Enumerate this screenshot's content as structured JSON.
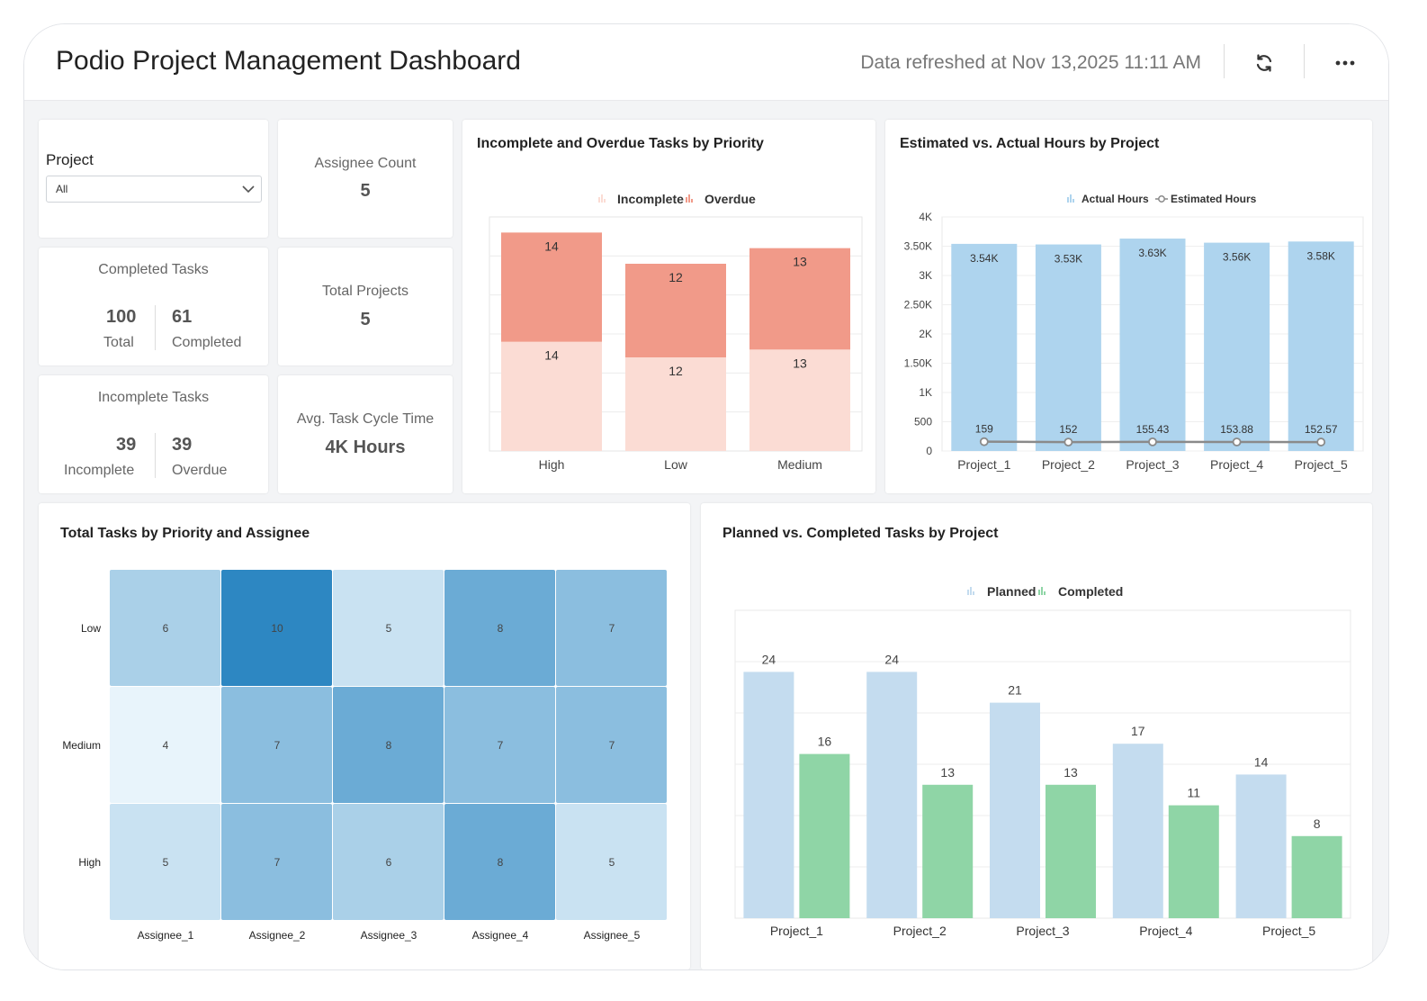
{
  "header": {
    "title": "Podio Project Management Dashboard",
    "refresh_text": "Data refreshed at Nov 13,2025 11:11 AM"
  },
  "filter": {
    "label": "Project",
    "selected": "All"
  },
  "kpis": {
    "assignee": {
      "label": "Assignee Count",
      "value": "5"
    },
    "completed": {
      "label": "Completed Tasks",
      "total": "100",
      "total_label": "Total",
      "done": "61",
      "done_label": "Completed"
    },
    "projects": {
      "label": "Total Projects",
      "value": "5"
    },
    "incomplete": {
      "label": "Incomplete Tasks",
      "incomplete": "39",
      "incomplete_label": "Incomplete",
      "overdue": "39",
      "overdue_label": "Overdue"
    },
    "cycle": {
      "label": "Avg. Task Cycle Time",
      "value": "4K Hours"
    }
  },
  "chart_data": [
    {
      "type": "bar",
      "stacked": true,
      "title": "Incomplete and Overdue Tasks by Priority",
      "categories": [
        "High",
        "Low",
        "Medium"
      ],
      "series": [
        {
          "name": "Incomplete",
          "values": [
            14,
            12,
            13
          ],
          "color": "#fbdcd4"
        },
        {
          "name": "Overdue",
          "values": [
            14,
            12,
            13
          ],
          "color": "#f19a89"
        }
      ],
      "ylim": [
        0,
        30
      ],
      "legend": "top-center",
      "grid": true
    },
    {
      "type": "bar",
      "title": "Estimated vs. Actual Hours by Project",
      "categories": [
        "Project_1",
        "Project_2",
        "Project_3",
        "Project_4",
        "Project_5"
      ],
      "series": [
        {
          "name": "Actual Hours",
          "values": [
            3540,
            3530,
            3630,
            3560,
            3580
          ],
          "labels": [
            "3.54K",
            "3.53K",
            "3.63K",
            "3.56K",
            "3.58K"
          ],
          "color": "#aed4ee"
        },
        {
          "name": "Estimated Hours",
          "type": "line",
          "values": [
            159,
            152,
            155.43,
            153.88,
            152.57
          ],
          "labels": [
            "159",
            "152",
            "155.43",
            "153.88",
            "152.57"
          ],
          "color": "#8a8a8a"
        }
      ],
      "y_ticks": [
        "0",
        "500",
        "1K",
        "1.50K",
        "2K",
        "2.50K",
        "3K",
        "3.50K",
        "4K"
      ],
      "ylim": [
        0,
        4000
      ],
      "legend": "top-center",
      "grid": true
    },
    {
      "type": "heatmap",
      "title": "Total Tasks by Priority and Assignee",
      "x": [
        "Assignee_1",
        "Assignee_2",
        "Assignee_3",
        "Assignee_4",
        "Assignee_5"
      ],
      "y": [
        "Low",
        "Medium",
        "High"
      ],
      "values": [
        [
          6,
          10,
          5,
          8,
          7
        ],
        [
          4,
          7,
          8,
          7,
          7
        ],
        [
          5,
          7,
          6,
          8,
          5
        ]
      ]
    },
    {
      "type": "bar",
      "title": "Planned vs. Completed Tasks by Project",
      "categories": [
        "Project_1",
        "Project_2",
        "Project_3",
        "Project_4",
        "Project_5"
      ],
      "series": [
        {
          "name": "Planned",
          "values": [
            24,
            24,
            21,
            17,
            14
          ],
          "color": "#c4dcef"
        },
        {
          "name": "Completed",
          "values": [
            16,
            13,
            13,
            11,
            8
          ],
          "color": "#8fd5a6"
        }
      ],
      "ylim": [
        0,
        30
      ],
      "legend": "top-center",
      "grid": true
    }
  ]
}
